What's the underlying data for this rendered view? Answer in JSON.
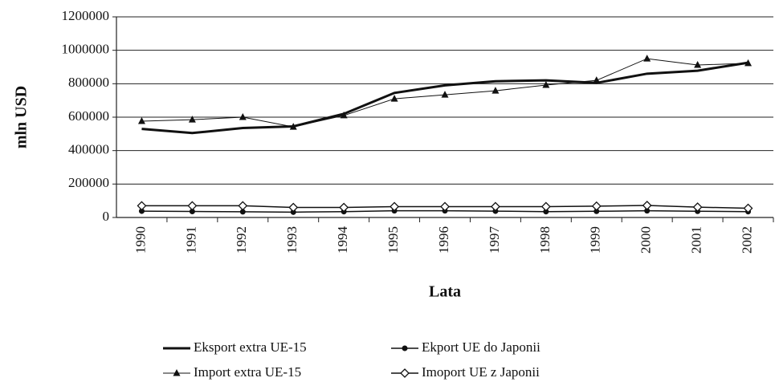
{
  "chart_data": {
    "type": "line",
    "y_label": "mln USD",
    "x_label": "Lata",
    "categories": [
      "1990",
      "1991",
      "1992",
      "1993",
      "1994",
      "1995",
      "1996",
      "1997",
      "1998",
      "1999",
      "2000",
      "2001",
      "2002"
    ],
    "series": [
      {
        "name": "Eksport extra UE-15",
        "color": "#111111",
        "marker": "none",
        "line_width": 3,
        "values": [
          530000,
          505000,
          535000,
          545000,
          620000,
          745000,
          790000,
          815000,
          820000,
          805000,
          860000,
          878000,
          926000
        ]
      },
      {
        "name": "Ekport UE do Japonii",
        "color": "#111111",
        "marker": "circle",
        "line_width": 1.5,
        "values": [
          38000,
          36000,
          34000,
          32000,
          35000,
          40000,
          40000,
          38000,
          35000,
          37000,
          40000,
          37000,
          35000
        ]
      },
      {
        "name": "Import extra UE-15",
        "color": "#111111",
        "marker": "triangle",
        "line_width": 1,
        "values": [
          576000,
          585000,
          600000,
          542000,
          610000,
          710000,
          734000,
          758000,
          792000,
          820000,
          950000,
          912000,
          922000
        ]
      },
      {
        "name": "Imoport UE z Japonii",
        "color": "#111111",
        "marker": "diamond-open",
        "line_width": 1.5,
        "values": [
          70000,
          70000,
          70000,
          60000,
          60000,
          65000,
          65000,
          65000,
          65000,
          68000,
          72000,
          62000,
          55000
        ]
      }
    ],
    "ylim": [
      0,
      1200000
    ],
    "yticks": [
      0,
      200000,
      400000,
      600000,
      800000,
      1000000,
      1200000
    ],
    "grid": true,
    "legend": "bottom"
  }
}
